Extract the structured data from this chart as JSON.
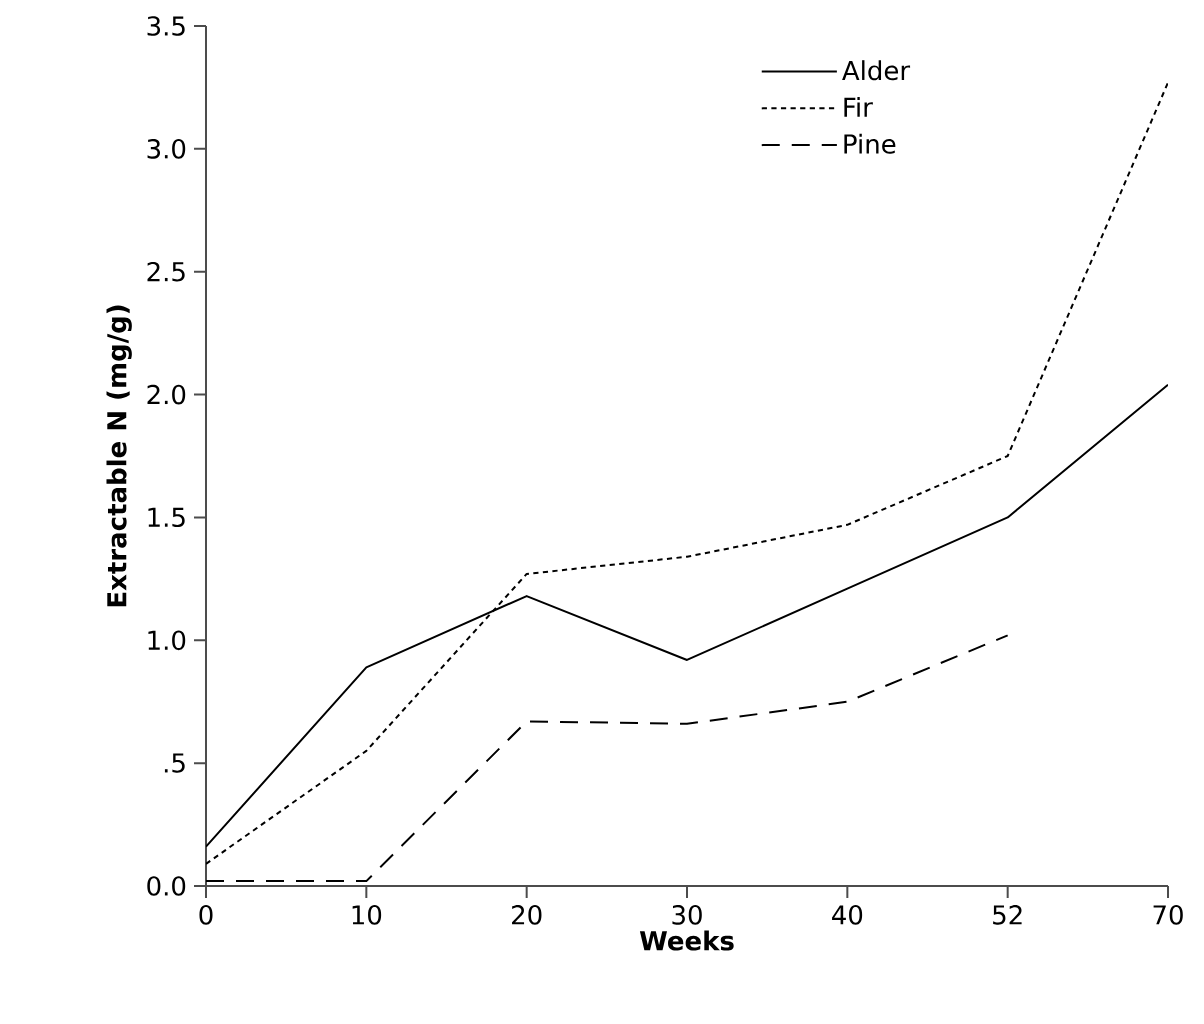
{
  "chart_data": {
    "type": "line",
    "xlabel": "Weeks",
    "ylabel": "Extractable N (mg/g)",
    "categories": [
      "0",
      "10",
      "20",
      "30",
      "40",
      "52",
      "70"
    ],
    "series": [
      {
        "name": "Alder",
        "color": "#000000",
        "line_style": "solid",
        "values": [
          0.16,
          0.89,
          1.18,
          0.92,
          1.21,
          1.5,
          2.04
        ]
      },
      {
        "name": "Fir",
        "color": "#000000",
        "line_style": "dotted",
        "values": [
          0.09,
          0.55,
          1.27,
          1.34,
          1.47,
          1.75,
          3.27
        ]
      },
      {
        "name": "Pine",
        "color": "#000000",
        "line_style": "dashed",
        "values": [
          0.02,
          0.02,
          0.67,
          0.66,
          0.75,
          1.02,
          null
        ]
      }
    ],
    "ylim": [
      0,
      3.5
    ],
    "yticks": [
      {
        "value": 0,
        "label": "0.0"
      },
      {
        "value": 0.5,
        "label": ".5"
      },
      {
        "value": 1,
        "label": "1.0"
      },
      {
        "value": 1.5,
        "label": "1.5"
      },
      {
        "value": 2,
        "label": "2.0"
      },
      {
        "value": 2.5,
        "label": "2.5"
      },
      {
        "value": 3,
        "label": "3.0"
      },
      {
        "value": 3.5,
        "label": "3.5"
      }
    ],
    "legend": "top right",
    "grid": false,
    "marker": "none"
  }
}
